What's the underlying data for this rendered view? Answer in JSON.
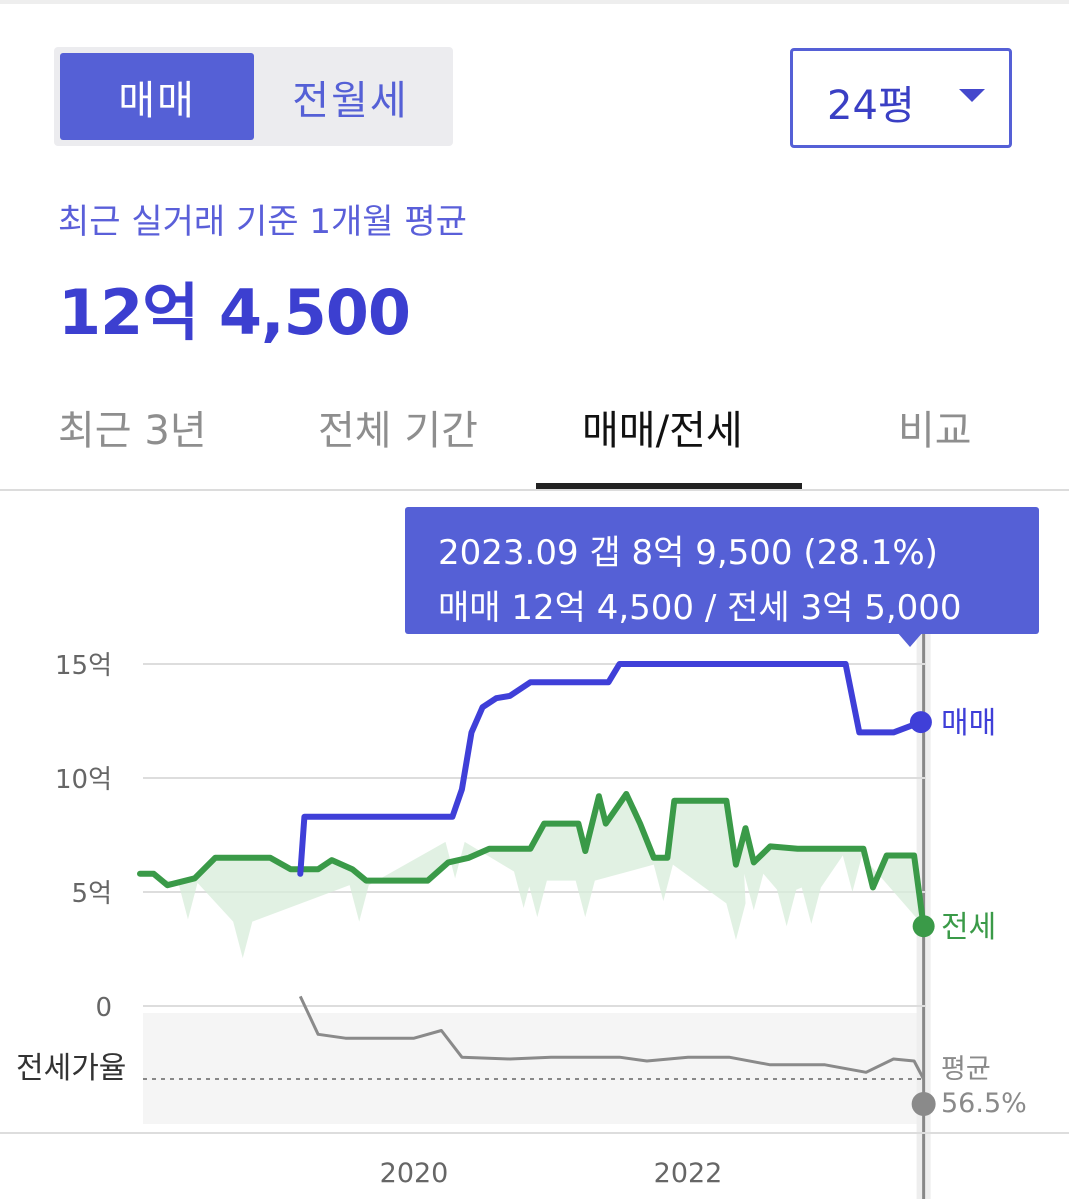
{
  "toggle": {
    "sale_label": "매매",
    "rent_label": "전월세"
  },
  "size_select": {
    "value": "24평"
  },
  "summary": {
    "label": "최근 실거래 기준 1개월 평균",
    "price": "12억 4,500"
  },
  "tabs": [
    {
      "label": "최근 3년"
    },
    {
      "label": "전체 기간"
    },
    {
      "label": "매매/전세"
    },
    {
      "label": "비교"
    }
  ],
  "tooltip": {
    "line1": "2023.09  갭 8억 9,500 (28.1%)",
    "line2": "매매 12억 4,500 / 전세 3억 5,000"
  },
  "colors": {
    "sale": "#3f3fd8",
    "jeonse": "#3a9a48",
    "ratio": "#8a8a8a",
    "accent": "#5560d6"
  },
  "chart_data": {
    "type": "line",
    "x_ticks": [
      "2020",
      "2022"
    ],
    "y_ticks": [
      "0",
      "5억",
      "10억",
      "15억"
    ],
    "ylim": [
      0,
      15
    ],
    "unit": "억",
    "series": [
      {
        "name": "매매",
        "points": [
          [
            2019.17,
            5.8
          ],
          [
            2019.2,
            8.3
          ],
          [
            2019.3,
            8.3
          ],
          [
            2019.5,
            8.3
          ],
          [
            2019.8,
            8.3
          ],
          [
            2020.0,
            8.3
          ],
          [
            2020.28,
            8.3
          ],
          [
            2020.35,
            9.5
          ],
          [
            2020.42,
            12.0
          ],
          [
            2020.5,
            13.1
          ],
          [
            2020.6,
            13.5
          ],
          [
            2020.7,
            13.6
          ],
          [
            2020.85,
            14.2
          ],
          [
            2021.0,
            14.2
          ],
          [
            2021.3,
            14.2
          ],
          [
            2021.42,
            14.2
          ],
          [
            2021.5,
            15.0
          ],
          [
            2021.7,
            15.0
          ],
          [
            2022.0,
            15.0
          ],
          [
            2022.5,
            15.0
          ],
          [
            2023.0,
            15.0
          ],
          [
            2023.15,
            15.0
          ],
          [
            2023.25,
            12.0
          ],
          [
            2023.5,
            12.0
          ],
          [
            2023.7,
            12.45
          ]
        ]
      },
      {
        "name": "전세",
        "points": [
          [
            2018.0,
            5.8
          ],
          [
            2018.1,
            5.8
          ],
          [
            2018.2,
            5.3
          ],
          [
            2018.4,
            5.6
          ],
          [
            2018.55,
            6.5
          ],
          [
            2018.8,
            6.5
          ],
          [
            2018.95,
            6.5
          ],
          [
            2019.1,
            6.0
          ],
          [
            2019.3,
            6.0
          ],
          [
            2019.4,
            6.4
          ],
          [
            2019.55,
            6.0
          ],
          [
            2019.65,
            5.5
          ],
          [
            2019.8,
            5.5
          ],
          [
            2020.0,
            5.5
          ],
          [
            2020.1,
            5.5
          ],
          [
            2020.25,
            6.3
          ],
          [
            2020.4,
            6.5
          ],
          [
            2020.55,
            6.9
          ],
          [
            2020.7,
            6.9
          ],
          [
            2020.85,
            6.9
          ],
          [
            2020.95,
            8.0
          ],
          [
            2021.1,
            8.0
          ],
          [
            2021.2,
            8.0
          ],
          [
            2021.25,
            6.8
          ],
          [
            2021.35,
            9.2
          ],
          [
            2021.4,
            8.0
          ],
          [
            2021.55,
            9.3
          ],
          [
            2021.65,
            8.0
          ],
          [
            2021.75,
            6.5
          ],
          [
            2021.85,
            6.5
          ],
          [
            2021.9,
            9.0
          ],
          [
            2022.0,
            9.0
          ],
          [
            2022.15,
            9.0
          ],
          [
            2022.28,
            9.0
          ],
          [
            2022.35,
            6.2
          ],
          [
            2022.42,
            7.8
          ],
          [
            2022.48,
            6.3
          ],
          [
            2022.6,
            7.0
          ],
          [
            2022.8,
            6.9
          ],
          [
            2023.0,
            6.9
          ],
          [
            2023.15,
            6.9
          ],
          [
            2023.28,
            6.9
          ],
          [
            2023.35,
            5.2
          ],
          [
            2023.45,
            6.6
          ],
          [
            2023.65,
            6.6
          ],
          [
            2023.72,
            3.5
          ]
        ]
      },
      {
        "name": "전세가율",
        "points": [
          [
            2019.17,
            100
          ],
          [
            2019.3,
            80
          ],
          [
            2019.5,
            78
          ],
          [
            2020.0,
            78
          ],
          [
            2020.2,
            82
          ],
          [
            2020.35,
            68
          ],
          [
            2020.7,
            67
          ],
          [
            2021.0,
            68
          ],
          [
            2021.5,
            68
          ],
          [
            2021.7,
            66
          ],
          [
            2022.0,
            68
          ],
          [
            2022.3,
            68
          ],
          [
            2022.6,
            64
          ],
          [
            2023.0,
            64
          ],
          [
            2023.3,
            60
          ],
          [
            2023.5,
            67
          ],
          [
            2023.65,
            66
          ],
          [
            2023.72,
            56.5
          ]
        ]
      }
    ],
    "ratio_label": "전세가율",
    "ratio_average": {
      "label": "평균",
      "value": "56.5%",
      "value_num": 56.5
    },
    "cursor": "2023.09"
  }
}
